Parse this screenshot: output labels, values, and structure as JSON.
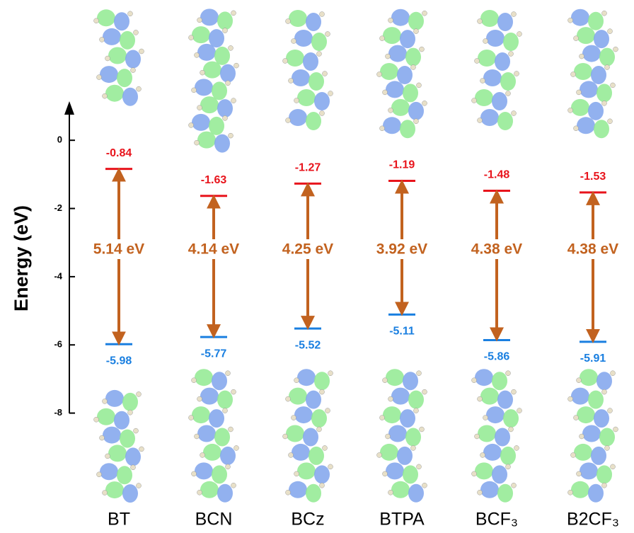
{
  "chart_data": {
    "type": "energy-levels",
    "y_label": "Energy (eV)",
    "categories": [
      "BT",
      "BCN",
      "BCz",
      "BTPA",
      "BCF₃",
      "B2CF₃"
    ],
    "lumo": {
      "color": "#e8141c",
      "values": [
        -0.84,
        -1.63,
        -1.27,
        -1.19,
        -1.48,
        -1.53
      ]
    },
    "homo": {
      "color": "#1a7fe0",
      "values": [
        -5.98,
        -5.77,
        -5.52,
        -5.11,
        -5.86,
        -5.91
      ]
    },
    "gap": {
      "color": "#c2621f",
      "values": [
        5.14,
        4.14,
        4.25,
        3.92,
        4.38,
        4.38
      ],
      "value_labels": [
        "5.14 eV",
        "4.14 eV",
        "4.25 eV",
        "3.92 eV",
        "4.38 eV",
        "4.38 eV"
      ]
    },
    "ylim": [
      -8,
      1
    ],
    "yticks": [
      0,
      -2,
      -4,
      -6,
      -8
    ]
  }
}
